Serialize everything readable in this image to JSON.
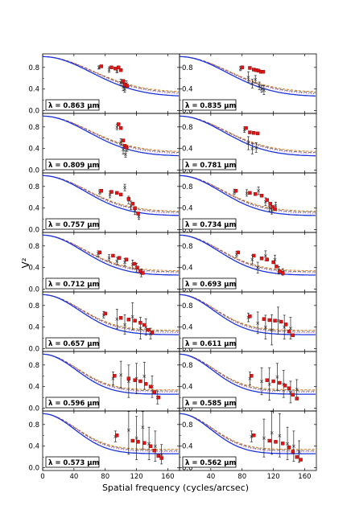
{
  "figure": {
    "ylabel": "V²",
    "xlabel": "Spatial frequency (cycles/arcsec)",
    "x_ticks": [
      "0",
      "40",
      "80",
      "120",
      "160"
    ],
    "y_ticks": [
      "0.0",
      "0.4",
      "0.8"
    ]
  },
  "colors": {
    "model_blue": "#1a33d9",
    "model_orange": "#e07a1f",
    "model_dashed": "#555555",
    "model_purple": "#c040c0",
    "data_red": "#e01515",
    "data_black": "#222222"
  },
  "chart_data": {
    "type": "scatter",
    "xlim": [
      0,
      175
    ],
    "ylim": [
      -0.05,
      1.05
    ],
    "grid": false,
    "panels": [
      {
        "label": "λ = 0.863 μm",
        "scale": 1.0,
        "red": [
          [
            75,
            0.82
          ],
          [
            88,
            0.8
          ],
          [
            93,
            0.78
          ],
          [
            97,
            0.8
          ],
          [
            100,
            0.75
          ],
          [
            103,
            0.55
          ],
          [
            105,
            0.48
          ],
          [
            108,
            0.46
          ]
        ],
        "black": [
          [
            72,
            0.8,
            0.03
          ],
          [
            85,
            0.76,
            0.05
          ],
          [
            95,
            0.74,
            0.04
          ],
          [
            100,
            0.52,
            0.06
          ],
          [
            103,
            0.45,
            0.08
          ],
          [
            105,
            0.4,
            0.06
          ],
          [
            107,
            0.5,
            0.05
          ]
        ]
      },
      {
        "label": "λ = 0.835 μm",
        "scale": 1.03,
        "red": [
          [
            80,
            0.8
          ],
          [
            90,
            0.79
          ],
          [
            95,
            0.76
          ],
          [
            98,
            0.75
          ],
          [
            101,
            0.74
          ],
          [
            104,
            0.72
          ],
          [
            107,
            0.72
          ]
        ],
        "black": [
          [
            78,
            0.78,
            0.04
          ],
          [
            88,
            0.62,
            0.1
          ],
          [
            93,
            0.5,
            0.08
          ],
          [
            97,
            0.58,
            0.07
          ],
          [
            102,
            0.46,
            0.07
          ],
          [
            105,
            0.4,
            0.06
          ],
          [
            108,
            0.38,
            0.08
          ]
        ]
      },
      {
        "label": "λ = 0.809 μm",
        "scale": 1.07,
        "red": [
          [
            97,
            0.85
          ],
          [
            100,
            0.78
          ],
          [
            103,
            0.55
          ],
          [
            105,
            0.45
          ],
          [
            107,
            0.42
          ]
        ],
        "black": [
          [
            95,
            0.8,
            0.05
          ],
          [
            100,
            0.52,
            0.06
          ],
          [
            103,
            0.38,
            0.08
          ],
          [
            106,
            0.3,
            0.06
          ],
          [
            108,
            0.4,
            0.05
          ]
        ]
      },
      {
        "label": "λ = 0.781 μm",
        "scale": 1.1,
        "red": [
          [
            85,
            0.78
          ],
          [
            90,
            0.7
          ],
          [
            95,
            0.69
          ],
          [
            100,
            0.68
          ]
        ],
        "black": [
          [
            83,
            0.75,
            0.05
          ],
          [
            88,
            0.5,
            0.12
          ],
          [
            93,
            0.4,
            0.1
          ],
          [
            98,
            0.42,
            0.09
          ]
        ]
      },
      {
        "label": "λ = 0.757 μm",
        "scale": 1.14,
        "red": [
          [
            75,
            0.72
          ],
          [
            88,
            0.7
          ],
          [
            95,
            0.68
          ],
          [
            100,
            0.65
          ],
          [
            110,
            0.57
          ],
          [
            115,
            0.48
          ],
          [
            118,
            0.4
          ],
          [
            122,
            0.3
          ]
        ],
        "black": [
          [
            73,
            0.7,
            0.04
          ],
          [
            86,
            0.65,
            0.06
          ],
          [
            105,
            0.78,
            0.06
          ],
          [
            110,
            0.55,
            0.07
          ],
          [
            113,
            0.45,
            0.08
          ],
          [
            118,
            0.35,
            0.07
          ],
          [
            123,
            0.25,
            0.06
          ]
        ]
      },
      {
        "label": "λ = 0.734 μm",
        "scale": 1.18,
        "red": [
          [
            72,
            0.72
          ],
          [
            90,
            0.68
          ],
          [
            97,
            0.66
          ],
          [
            105,
            0.63
          ],
          [
            112,
            0.55
          ],
          [
            116,
            0.48
          ],
          [
            119,
            0.42
          ],
          [
            122,
            0.38
          ]
        ],
        "black": [
          [
            70,
            0.7,
            0.05
          ],
          [
            86,
            0.68,
            0.06
          ],
          [
            101,
            0.72,
            0.07
          ],
          [
            110,
            0.52,
            0.07
          ],
          [
            115,
            0.42,
            0.08
          ],
          [
            118,
            0.35,
            0.06
          ],
          [
            123,
            0.45,
            0.06
          ]
        ]
      },
      {
        "label": "λ = 0.712 μm",
        "scale": 1.21,
        "red": [
          [
            73,
            0.68
          ],
          [
            90,
            0.62
          ],
          [
            98,
            0.58
          ],
          [
            107,
            0.55
          ],
          [
            117,
            0.47
          ],
          [
            121,
            0.4
          ],
          [
            125,
            0.33
          ],
          [
            128,
            0.3
          ]
        ],
        "black": [
          [
            71,
            0.66,
            0.05
          ],
          [
            85,
            0.58,
            0.06
          ],
          [
            95,
            0.52,
            0.07
          ],
          [
            105,
            0.5,
            0.07
          ],
          [
            115,
            0.46,
            0.08
          ],
          [
            120,
            0.4,
            0.08
          ],
          [
            126,
            0.3,
            0.07
          ]
        ]
      },
      {
        "label": "λ = 0.693 μm",
        "scale": 1.25,
        "red": [
          [
            75,
            0.68
          ],
          [
            95,
            0.62
          ],
          [
            105,
            0.57
          ],
          [
            112,
            0.55
          ],
          [
            120,
            0.5
          ],
          [
            124,
            0.42
          ],
          [
            128,
            0.33
          ],
          [
            132,
            0.3
          ]
        ],
        "black": [
          [
            73,
            0.65,
            0.05
          ],
          [
            93,
            0.55,
            0.08
          ],
          [
            100,
            0.4,
            0.1
          ],
          [
            110,
            0.62,
            0.09
          ],
          [
            122,
            0.55,
            0.08
          ],
          [
            127,
            0.35,
            0.07
          ],
          [
            132,
            0.32,
            0.06
          ]
        ]
      },
      {
        "label": "λ = 0.657 μm",
        "scale": 1.32,
        "red": [
          [
            80,
            0.65
          ],
          [
            100,
            0.57
          ],
          [
            110,
            0.54
          ],
          [
            118,
            0.52
          ],
          [
            125,
            0.48
          ],
          [
            130,
            0.44
          ],
          [
            135,
            0.35
          ],
          [
            140,
            0.3
          ]
        ],
        "black": [
          [
            78,
            0.63,
            0.06
          ],
          [
            95,
            0.55,
            0.18
          ],
          [
            105,
            0.45,
            0.18
          ],
          [
            115,
            0.6,
            0.25
          ],
          [
            125,
            0.38,
            0.2
          ],
          [
            132,
            0.4,
            0.15
          ],
          [
            138,
            0.28,
            0.1
          ]
        ]
      },
      {
        "label": "λ = 0.611 μm",
        "scale": 1.42,
        "red": [
          [
            90,
            0.6
          ],
          [
            108,
            0.55
          ],
          [
            115,
            0.53
          ],
          [
            122,
            0.52
          ],
          [
            130,
            0.5
          ],
          [
            136,
            0.45
          ],
          [
            140,
            0.32
          ],
          [
            145,
            0.25
          ]
        ],
        "black": [
          [
            88,
            0.58,
            0.08
          ],
          [
            100,
            0.48,
            0.2
          ],
          [
            110,
            0.4,
            0.22
          ],
          [
            118,
            0.35,
            0.28
          ],
          [
            126,
            0.52,
            0.25
          ],
          [
            134,
            0.4,
            0.22
          ],
          [
            142,
            0.38,
            0.2
          ]
        ]
      },
      {
        "label": "λ = 0.596 μm",
        "scale": 1.45,
        "red": [
          [
            92,
            0.6
          ],
          [
            110,
            0.55
          ],
          [
            118,
            0.52
          ],
          [
            125,
            0.5
          ],
          [
            132,
            0.45
          ],
          [
            138,
            0.4
          ],
          [
            143,
            0.3
          ],
          [
            148,
            0.2
          ]
        ],
        "black": [
          [
            90,
            0.55,
            0.12
          ],
          [
            100,
            0.62,
            0.25
          ],
          [
            110,
            0.5,
            0.3
          ],
          [
            120,
            0.55,
            0.28
          ],
          [
            130,
            0.6,
            0.25
          ],
          [
            140,
            0.4,
            0.2
          ],
          [
            147,
            0.2,
            0.12
          ]
        ]
      },
      {
        "label": "λ = 0.585 μm",
        "scale": 1.48,
        "red": [
          [
            92,
            0.6
          ],
          [
            112,
            0.52
          ],
          [
            120,
            0.5
          ],
          [
            128,
            0.47
          ],
          [
            135,
            0.42
          ],
          [
            140,
            0.37
          ],
          [
            145,
            0.25
          ],
          [
            150,
            0.18
          ]
        ],
        "black": [
          [
            90,
            0.55,
            0.12
          ],
          [
            105,
            0.5,
            0.25
          ],
          [
            115,
            0.45,
            0.3
          ],
          [
            125,
            0.58,
            0.25
          ],
          [
            133,
            0.45,
            0.25
          ],
          [
            142,
            0.3,
            0.2
          ],
          [
            150,
            0.35,
            0.18
          ]
        ]
      },
      {
        "label": "λ = 0.573 μm",
        "scale": 1.51,
        "red": [
          [
            95,
            0.6
          ],
          [
            115,
            0.5
          ],
          [
            122,
            0.48
          ],
          [
            130,
            0.46
          ],
          [
            138,
            0.4
          ],
          [
            143,
            0.32
          ],
          [
            148,
            0.22
          ],
          [
            152,
            0.18
          ]
        ],
        "black": [
          [
            93,
            0.58,
            0.1
          ],
          [
            110,
            0.7,
            0.45
          ],
          [
            120,
            0.55,
            0.4
          ],
          [
            128,
            0.75,
            0.4
          ],
          [
            136,
            0.45,
            0.3
          ],
          [
            144,
            0.4,
            0.28
          ],
          [
            152,
            0.25,
            0.18
          ]
        ]
      },
      {
        "label": "λ = 0.562 μm",
        "scale": 1.54,
        "red": [
          [
            95,
            0.6
          ],
          [
            115,
            0.5
          ],
          [
            123,
            0.48
          ],
          [
            132,
            0.45
          ],
          [
            140,
            0.38
          ],
          [
            145,
            0.3
          ],
          [
            150,
            0.2
          ],
          [
            155,
            0.15
          ]
        ],
        "black": [
          [
            92,
            0.58,
            0.1
          ],
          [
            108,
            0.55,
            0.35
          ],
          [
            118,
            0.65,
            0.4
          ],
          [
            128,
            0.6,
            0.4
          ],
          [
            138,
            0.45,
            0.3
          ],
          [
            146,
            0.4,
            0.28
          ],
          [
            153,
            0.3,
            0.2
          ]
        ]
      }
    ]
  }
}
